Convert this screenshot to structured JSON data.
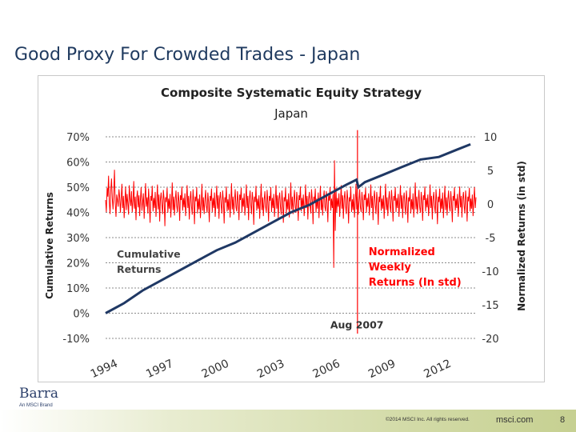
{
  "slide": {
    "title": "Good Proxy For Crowded Trades - Japan",
    "logo": "Barra",
    "logo_sub": "An MSCI Brand",
    "copyright": "©2014 MSCI Inc. All rights reserved.",
    "site": "msci.com",
    "page_number": "8"
  },
  "chart_data": {
    "type": "line",
    "title": "Composite Systematic Equity Strategy",
    "subtitle": "Japan",
    "ylabel_left": "Cumulative Returns",
    "ylabel_right": "Normalized Returns (in std)",
    "left_ticks": [
      "70%",
      "60%",
      "50%",
      "40%",
      "30%",
      "20%",
      "10%",
      "0%",
      "-10%"
    ],
    "left_ylim": [
      -10,
      70
    ],
    "right_ticks": [
      "10",
      "5",
      "0",
      "-5",
      "-10",
      "-15",
      "-20"
    ],
    "right_ylim": [
      -20,
      10
    ],
    "x_ticks": [
      "1994",
      "1997",
      "2000",
      "2003",
      "2006",
      "2009",
      "2012"
    ],
    "xlim": [
      1994,
      2014
    ],
    "grid": "dashed horizontal",
    "annotations": {
      "cumulative": [
        "Cumulative",
        "Returns"
      ],
      "normalized": [
        "Normalized",
        "Weekly",
        "Returns (In std)"
      ],
      "event": "Aug 2007"
    },
    "event_x": 2007.6,
    "event_y": 11,
    "colors": {
      "cumulative": "#1f3864",
      "normalized": "#ff0000",
      "annotation": "#ff0000"
    },
    "series": [
      {
        "name": "Cumulative Returns",
        "axis": "left",
        "points": [
          [
            1994.0,
            0
          ],
          [
            1995.0,
            4
          ],
          [
            1996.0,
            9
          ],
          [
            1997.0,
            13
          ],
          [
            1998.0,
            17
          ],
          [
            1999.0,
            21
          ],
          [
            2000.0,
            25
          ],
          [
            2001.0,
            28
          ],
          [
            2002.0,
            32
          ],
          [
            2003.0,
            36
          ],
          [
            2004.0,
            40
          ],
          [
            2005.0,
            43
          ],
          [
            2006.0,
            47
          ],
          [
            2007.0,
            51
          ],
          [
            2007.55,
            53
          ],
          [
            2007.65,
            50
          ],
          [
            2008.0,
            52
          ],
          [
            2009.0,
            55
          ],
          [
            2010.0,
            58
          ],
          [
            2011.0,
            61
          ],
          [
            2012.0,
            62
          ],
          [
            2013.0,
            65
          ],
          [
            2013.7,
            67
          ]
        ]
      },
      {
        "name": "Normalized Weekly Returns (In std)",
        "axis": "right",
        "x_start": 1994.0,
        "x_step": 0.04,
        "values": [
          0.6,
          -1.2,
          2.4,
          1.1,
          4.2,
          0.3,
          -1.5,
          2.1,
          3.8,
          0.9,
          -0.8,
          1.7,
          5.1,
          0.2,
          -1.9,
          1.4,
          0.6,
          -0.4,
          2.2,
          1.0,
          -1.3,
          0.8,
          3.0,
          -0.6,
          1.2,
          -2.1,
          0.4,
          2.6,
          -0.9,
          1.5,
          0.1,
          -1.6,
          2.8,
          0.7,
          -0.3,
          1.9,
          -1.2,
          0.5,
          3.4,
          -0.7,
          1.1,
          -2.4,
          0.9,
          2.0,
          -0.5,
          1.3,
          -1.8,
          0.6,
          2.5,
          -1.0,
          0.2,
          1.6,
          -2.2,
          0.8,
          3.1,
          -0.4,
          1.0,
          -1.4,
          2.3,
          0.3,
          -2.8,
          1.2,
          0.5,
          2.7,
          -1.1,
          0.9,
          -0.6,
          1.8,
          -1.9,
          0.4,
          2.9,
          -0.8,
          1.4,
          -2.6,
          0.7,
          1.7,
          -0.2,
          -1.5,
          2.1,
          0.6,
          -3.3,
          1.0,
          0.3,
          2.4,
          -1.3,
          0.8,
          -0.7,
          1.5,
          -2.0,
          0.2,
          3.2,
          -0.9,
          1.1,
          -1.7,
          0.5,
          2.0,
          -0.3,
          -1.2,
          1.8,
          0.4,
          -2.5,
          1.3,
          0.6,
          2.6,
          -1.0,
          0.9,
          -0.5,
          1.6,
          -1.8,
          0.3,
          2.8,
          -0.6,
          1.2,
          -2.3,
          0.7,
          1.9,
          -0.4,
          -1.6,
          2.2,
          0.5,
          -3.0,
          1.1,
          0.4,
          2.5,
          -1.4,
          0.8,
          -0.8,
          1.4,
          -2.1,
          0.1,
          3.0,
          -1.0,
          1.0,
          -1.5,
          0.6,
          2.1,
          -0.2,
          -1.3,
          1.7,
          0.3,
          -2.7,
          1.2,
          0.5,
          2.3,
          -1.2,
          0.9,
          -0.6,
          1.7,
          -1.9,
          0.4,
          2.7,
          -0.7,
          1.3,
          -2.2,
          0.8,
          1.8,
          -0.3,
          -1.4,
          2.0,
          0.6,
          -2.9,
          1.0,
          0.2,
          2.6,
          -1.1,
          0.7,
          -0.9,
          1.5,
          -2.0,
          0.3,
          3.1,
          -0.8,
          1.1,
          -1.6,
          0.5,
          2.2,
          -0.5,
          -1.1,
          1.9,
          0.4,
          -2.4,
          1.4,
          0.6,
          2.4,
          -1.3,
          0.9,
          -0.4,
          1.6,
          -1.7,
          0.2,
          2.9,
          -0.6,
          1.2,
          -2.4,
          0.7,
          2.0,
          -0.2,
          -1.5,
          1.8,
          0.5,
          -3.1,
          1.1,
          0.3,
          2.7,
          -1.0,
          0.8,
          -0.7,
          1.3,
          -2.2,
          0.4,
          3.0,
          -0.9,
          1.0,
          -1.8,
          0.6,
          1.9,
          -0.4,
          -1.2,
          2.1,
          0.3,
          -2.6,
          1.2,
          0.5,
          2.5,
          -1.2,
          0.9,
          -0.6,
          1.5,
          -1.9,
          0.2,
          2.8,
          -0.7,
          1.3,
          -2.1,
          0.8,
          1.7,
          -0.3,
          -1.6,
          2.0,
          0.4,
          -2.8,
          1.0,
          0.4,
          2.4,
          -1.4,
          0.7,
          -0.8,
          1.6,
          -2.0,
          0.3,
          3.2,
          -0.8,
          1.1,
          -1.5,
          0.5,
          2.1,
          -0.5,
          -1.3,
          1.8,
          0.6,
          -2.5,
          1.3,
          0.6,
          2.6,
          -1.1,
          0.9,
          -0.5,
          1.4,
          -1.8,
          0.1,
          2.9,
          -0.6,
          1.2,
          -2.3,
          0.7,
          1.8,
          -0.2,
          -1.4,
          2.2,
          0.5,
          -3.0,
          1.1,
          0.3,
          2.3,
          -1.3,
          0.8,
          -0.7,
          1.7,
          -2.1,
          0.4,
          2.7,
          -0.9,
          1.0,
          -1.7,
          0.6,
          2.0,
          -0.4,
          -1.1,
          1.9,
          0.3,
          -2.7,
          1.2,
          0.5,
          2.5,
          -1.0,
          0.8,
          -0.6,
          1.5,
          -9.5,
          6.5,
          -4.0,
          2.4,
          -1.2,
          0.9,
          -0.4,
          1.6,
          -1.9,
          0.2,
          2.8,
          -0.7,
          1.3,
          -2.2,
          0.8,
          1.9,
          -0.3,
          -1.5,
          2.1,
          0.6,
          -2.9,
          1.0,
          0.4,
          2.6,
          -1.2,
          0.7,
          -0.9,
          1.5,
          -2.0,
          0.3,
          3.0,
          -0.8,
          1.1,
          -1.6,
          0.5,
          2.2,
          -0.5,
          -1.2,
          1.8,
          0.4,
          -2.4,
          1.4,
          0.6,
          2.4,
          -1.3,
          0.9,
          -0.4,
          1.6,
          -1.7,
          0.2,
          2.9,
          -0.6,
          1.2,
          -2.4,
          0.7,
          2.0,
          -0.2,
          -1.5,
          1.8,
          0.5,
          -3.1,
          1.1,
          0.3,
          2.7,
          -1.0,
          0.8,
          -0.7,
          1.3,
          -2.2,
          0.4,
          3.0,
          -0.9,
          1.0,
          -1.8,
          0.6,
          1.9,
          -0.4,
          -1.2,
          2.1,
          0.3,
          -2.6,
          1.2,
          0.5,
          2.5,
          -1.2,
          0.9,
          -0.6,
          1.5,
          -1.9,
          0.2,
          2.8,
          -0.7,
          1.3,
          -2.1,
          0.8,
          1.7,
          -0.3,
          -1.6,
          2.0,
          0.4,
          -2.8,
          1.0,
          0.4,
          2.4,
          -1.4,
          0.7,
          -0.8,
          1.6,
          -2.0,
          0.3,
          3.2,
          -0.8,
          1.1,
          -1.5,
          0.5,
          2.1,
          -0.5,
          -1.3,
          1.8,
          0.6,
          -2.5,
          1.3,
          0.6,
          2.6,
          -1.1,
          0.9,
          -0.5,
          1.4,
          -1.8,
          0.1,
          2.9,
          -0.6,
          1.2,
          -2.3,
          0.7,
          1.8,
          -0.2,
          -1.4,
          2.2,
          0.5,
          -3.0,
          1.1,
          0.3,
          2.3,
          -1.3,
          0.8,
          -0.7,
          1.7,
          -2.1,
          0.4,
          2.7,
          -0.9,
          1.0,
          -1.7,
          0.6,
          2.0,
          -0.4,
          -1.1,
          1.9,
          0.3,
          -2.7,
          1.2,
          0.5,
          2.5,
          -1.0,
          0.8,
          -0.6,
          1.5,
          -1.9,
          0.2,
          2.6,
          -0.5,
          1.2,
          -2.0,
          0.7,
          1.8,
          -0.3,
          -1.4,
          2.0,
          0.5,
          -2.6,
          1.1,
          0.4,
          2.4,
          -1.1,
          0.8,
          -0.7,
          1.4,
          -1.8,
          0.3,
          2.5,
          -0.6,
          1.0,
          -1.9,
          0.6,
          1.7,
          -0.2,
          -1.3,
          1.9,
          0.4,
          -2.3,
          1.0
        ]
      }
    ]
  }
}
